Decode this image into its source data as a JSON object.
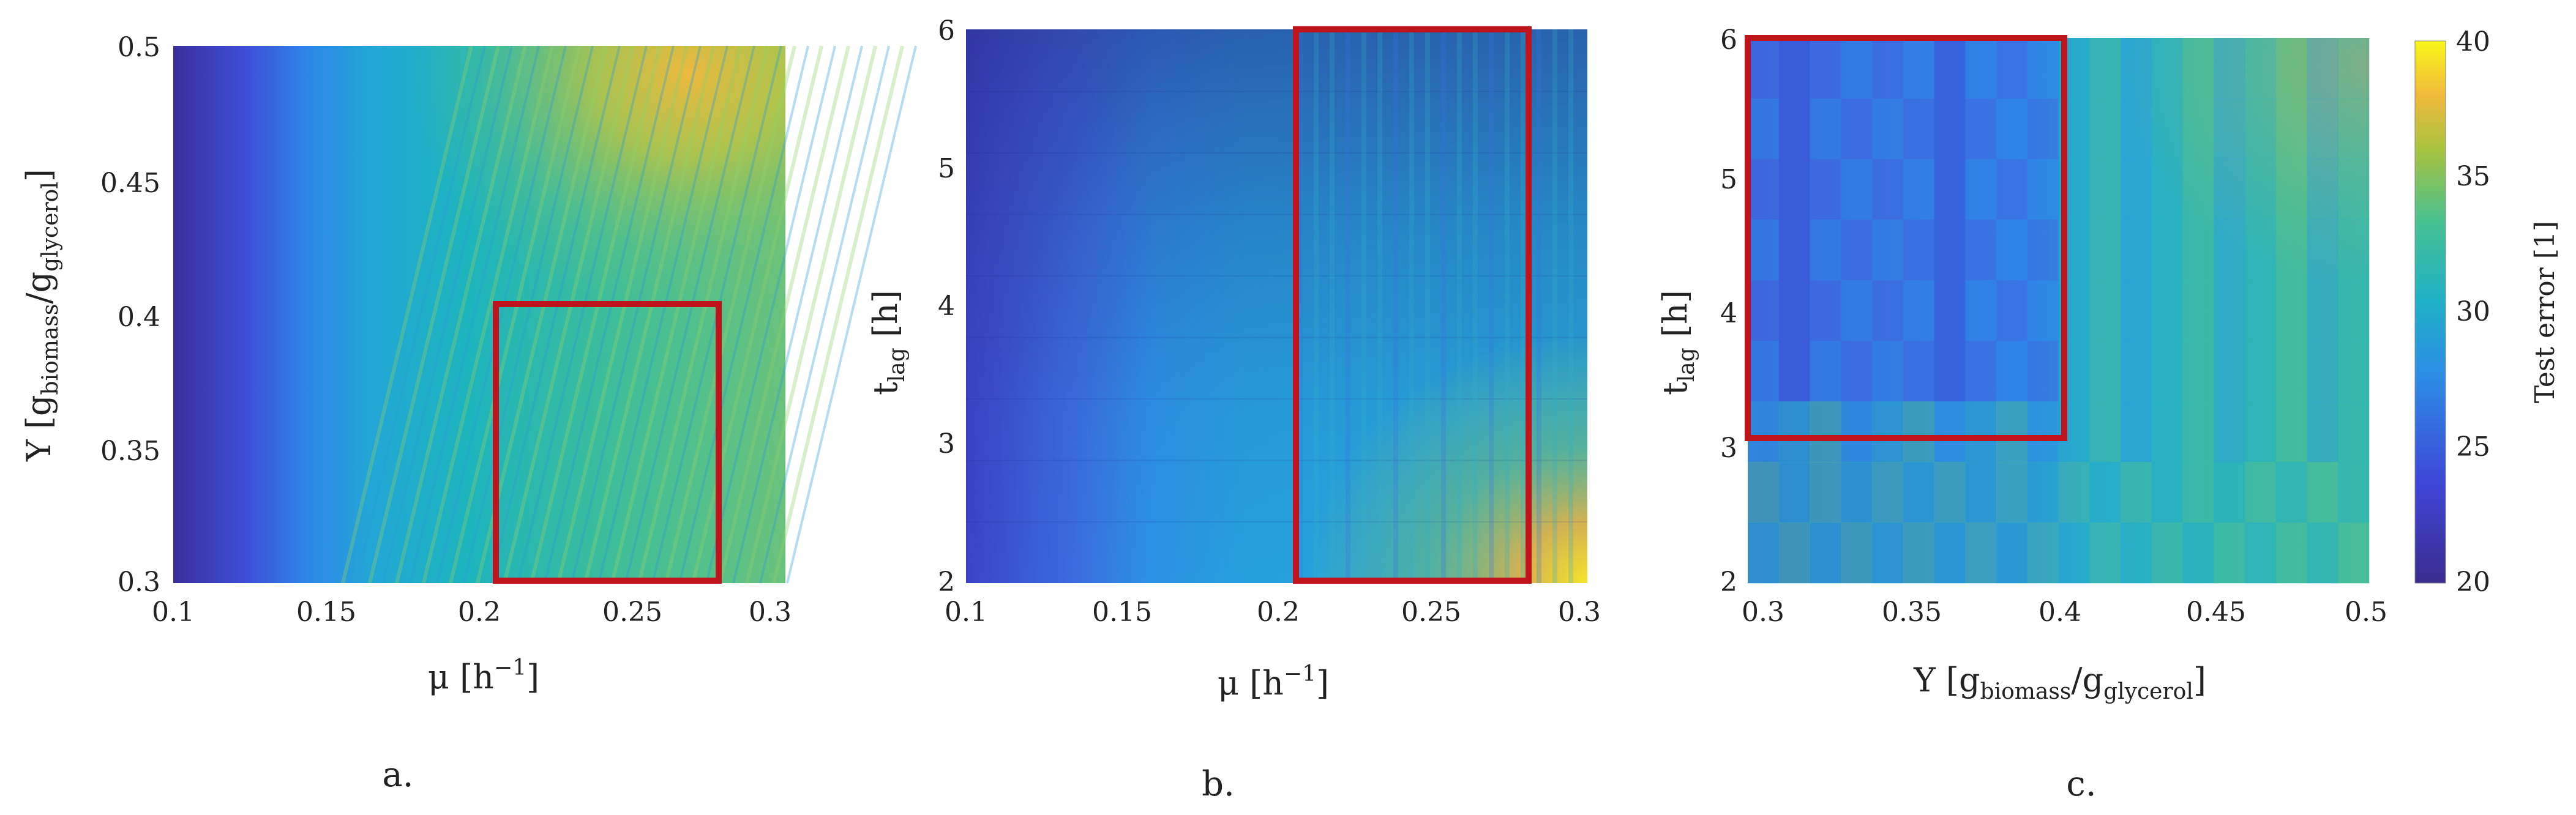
{
  "chart_data": [
    {
      "type": "heatmap",
      "panel_label": "a.",
      "xlabel": {
        "main": "μ [h",
        "sup": "−1",
        "tail": "]"
      },
      "ylabel": {
        "main": "Y [g",
        "sub1": "biomass",
        "mid": "/g",
        "sub2": "glycerol",
        "tail": "]"
      },
      "xlim": [
        0.1,
        0.3
      ],
      "ylim": [
        0.3,
        0.5
      ],
      "xticks": [
        "0.1",
        "0.15",
        "0.2",
        "0.25",
        "0.3"
      ],
      "yticks": [
        "0.3",
        "0.35",
        "0.4",
        "0.45",
        "0.5"
      ],
      "highlight_box": {
        "x": [
          0.21,
          0.28
        ],
        "y": [
          0.3,
          0.4
        ],
        "color": "#c0141c"
      },
      "value_range": [
        20,
        40
      ]
    },
    {
      "type": "heatmap",
      "panel_label": "b.",
      "xlabel": {
        "main": "μ [h",
        "sup": "−1",
        "tail": "]"
      },
      "ylabel": {
        "main": "t",
        "sub1": "lag",
        "tail": " [h]"
      },
      "xlim": [
        0.1,
        0.3
      ],
      "ylim": [
        2,
        6
      ],
      "xticks": [
        "0.1",
        "0.15",
        "0.2",
        "0.25",
        "0.3"
      ],
      "yticks": [
        "2",
        "3",
        "4",
        "5",
        "6"
      ],
      "highlight_box": {
        "x": [
          0.21,
          0.28
        ],
        "y": [
          2,
          6
        ],
        "color": "#c0141c"
      },
      "value_range": [
        20,
        40
      ]
    },
    {
      "type": "heatmap",
      "panel_label": "c.",
      "xlabel": {
        "main": "Y [g",
        "sub1": "biomass",
        "mid": "/g",
        "sub2": "glycerol",
        "tail": "]"
      },
      "ylabel": {
        "main": "t",
        "sub1": "lag",
        "tail": " [h]"
      },
      "xlim": [
        0.3,
        0.5
      ],
      "ylim": [
        2,
        6
      ],
      "xticks": [
        "0.3",
        "0.35",
        "0.4",
        "0.45",
        "0.5"
      ],
      "yticks": [
        "2",
        "3",
        "4",
        "5",
        "6"
      ],
      "highlight_box": {
        "x": [
          0.3,
          0.4
        ],
        "y": [
          3,
          6
        ],
        "color": "#c0141c"
      },
      "value_range": [
        20,
        40
      ]
    }
  ],
  "colorbar": {
    "label": "Test error [1]",
    "range": [
      20,
      40
    ],
    "ticks": [
      "20",
      "25",
      "30",
      "35",
      "40"
    ],
    "colormap": "parula"
  }
}
